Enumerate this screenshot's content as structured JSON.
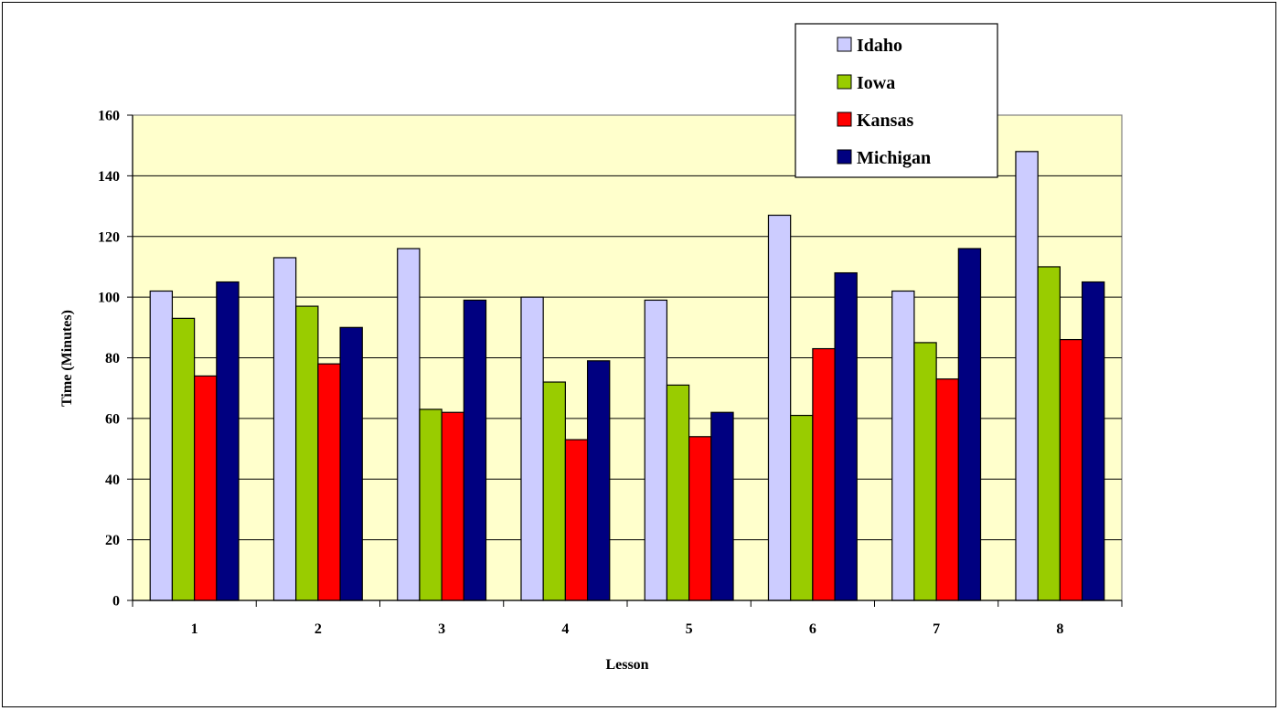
{
  "chart_data": {
    "type": "bar",
    "title": "",
    "xlabel": "Lesson",
    "ylabel": "Time (Minutes)",
    "ylim": [
      0,
      160
    ],
    "ytick_step": 20,
    "yticks": [
      "0",
      "20",
      "40",
      "60",
      "80",
      "100",
      "120",
      "140",
      "160"
    ],
    "grid": true,
    "legend_position": "top-right",
    "categories": [
      "1",
      "2",
      "3",
      "4",
      "5",
      "6",
      "7",
      "8"
    ],
    "series": [
      {
        "name": "Idaho",
        "color": "#CCCCFF",
        "values": [
          102,
          113,
          116,
          100,
          99,
          127,
          102,
          148
        ]
      },
      {
        "name": "Iowa",
        "color": "#99CC00",
        "values": [
          93,
          97,
          63,
          72,
          71,
          61,
          85,
          110
        ]
      },
      {
        "name": "Kansas",
        "color": "#FF0000",
        "values": [
          74,
          78,
          62,
          53,
          54,
          83,
          73,
          86
        ]
      },
      {
        "name": "Michigan",
        "color": "#000080",
        "values": [
          105,
          90,
          99,
          79,
          62,
          108,
          116,
          105
        ]
      }
    ],
    "plot_background": "#FFFFCC"
  }
}
